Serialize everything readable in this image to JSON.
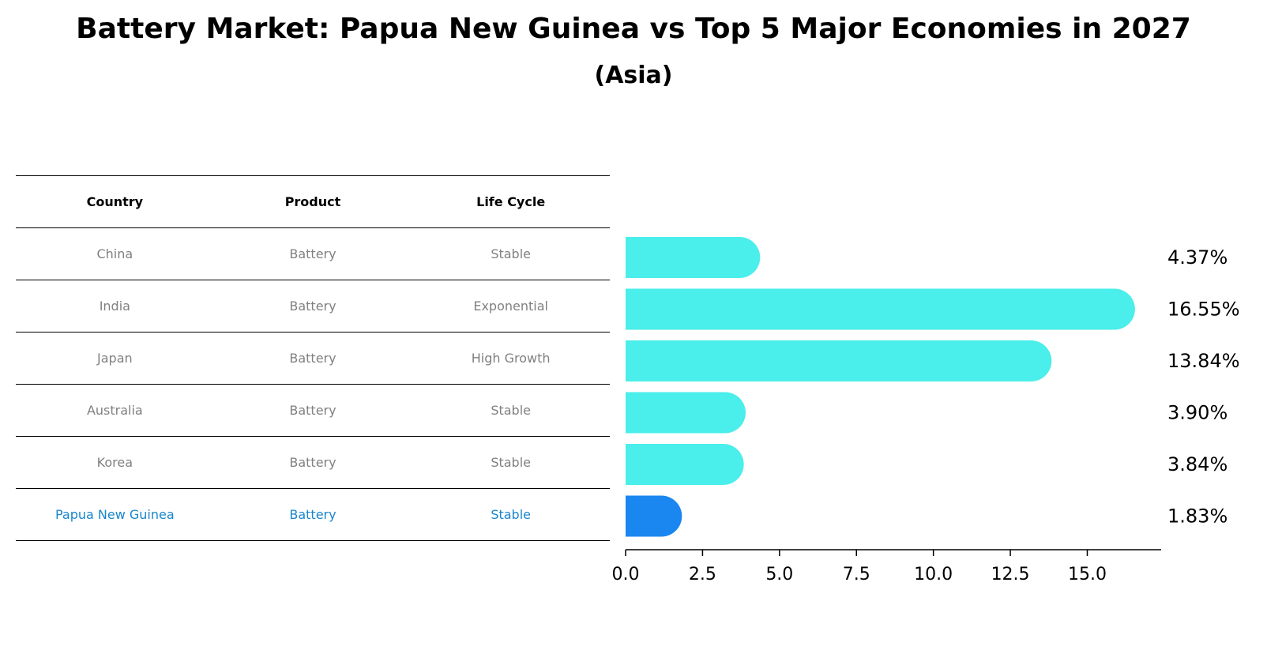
{
  "title": "Battery Market: Papua New Guinea vs Top 5 Major Economies in 2027",
  "subtitle": "(Asia)",
  "table": {
    "headers": [
      "Country",
      "Product",
      "Life Cycle"
    ],
    "rows": [
      {
        "country": "China",
        "product": "Battery",
        "life_cycle": "Stable"
      },
      {
        "country": "India",
        "product": "Battery",
        "life_cycle": "Exponential"
      },
      {
        "country": "Japan",
        "product": "Battery",
        "life_cycle": "High Growth"
      },
      {
        "country": "Australia",
        "product": "Battery",
        "life_cycle": "Stable"
      },
      {
        "country": "Korea",
        "product": "Battery",
        "life_cycle": "Stable"
      },
      {
        "country": "Papua New Guinea",
        "product": "Battery",
        "life_cycle": "Stable"
      }
    ]
  },
  "colors": {
    "bar": "#4aeeea",
    "highlight_bar": "#1a86f0",
    "highlight_text": "#1a86cc",
    "row_text": "#808080"
  },
  "chart_data": {
    "type": "bar",
    "orientation": "horizontal",
    "categories": [
      "China",
      "India",
      "Japan",
      "Australia",
      "Korea",
      "Papua New Guinea"
    ],
    "values": [
      4.37,
      16.55,
      13.84,
      3.9,
      3.84,
      1.83
    ],
    "value_labels": [
      "4.37%",
      "16.55%",
      "13.84%",
      "3.90%",
      "3.84%",
      "1.83%"
    ],
    "highlight": "Papua New Guinea",
    "xlim": [
      0,
      17.4
    ],
    "xticks": [
      0.0,
      2.5,
      5.0,
      7.5,
      10.0,
      12.5,
      15.0
    ],
    "xtick_labels": [
      "0.0",
      "2.5",
      "5.0",
      "7.5",
      "10.0",
      "12.5",
      "15.0"
    ],
    "xlabel": "",
    "ylabel": ""
  }
}
